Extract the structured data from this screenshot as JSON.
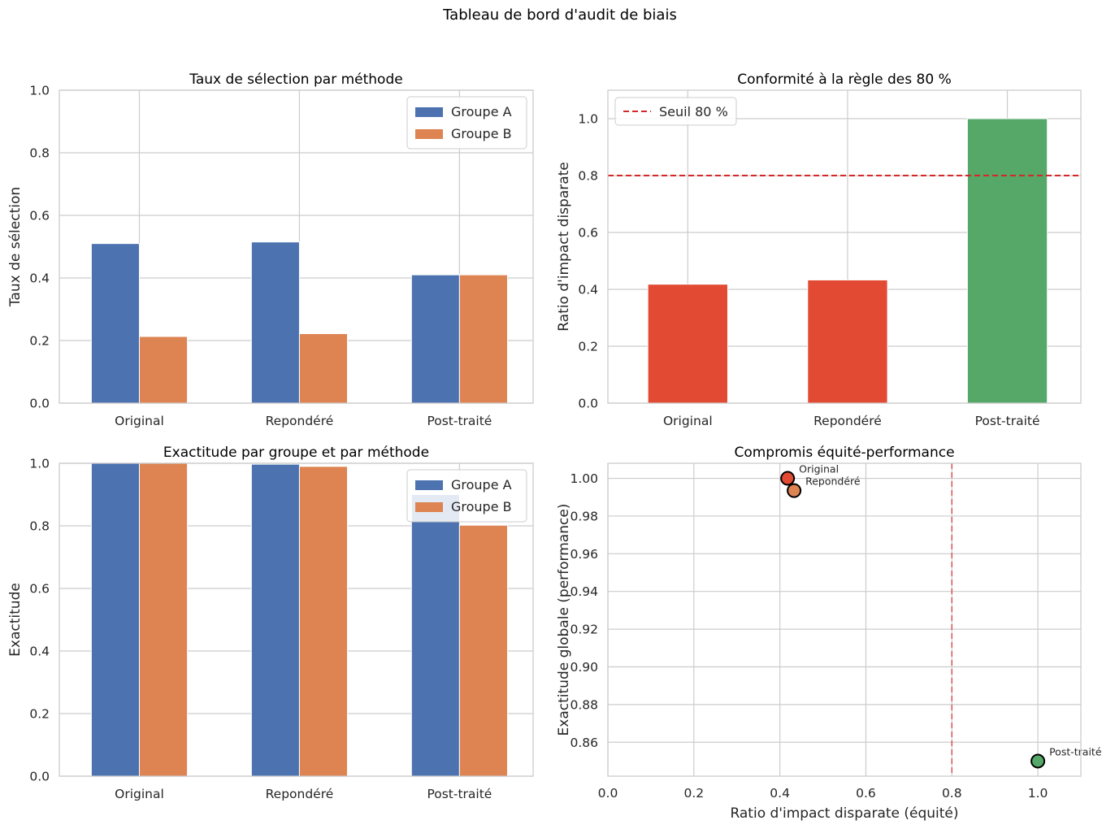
{
  "figure": {
    "title": "Tableau de bord d'audit de biais"
  },
  "colors": {
    "groupA": "#4c72b0",
    "groupB": "#dd8452",
    "red": "#e24a33",
    "orange": "#dd8452",
    "green": "#55a868",
    "threshold": "#d62728",
    "grid": "#cccccc",
    "spine": "#cccccc"
  },
  "chart_data": [
    {
      "id": "selection",
      "type": "bar",
      "title": "Taux de sélection par méthode",
      "xlabel": "",
      "ylabel": "Taux de sélection",
      "categories": [
        "Original",
        "Repondéré",
        "Post-traité"
      ],
      "series": [
        {
          "name": "Groupe A",
          "values": [
            0.51,
            0.515,
            0.41
          ]
        },
        {
          "name": "Groupe B",
          "values": [
            0.213,
            0.222,
            0.41
          ]
        }
      ],
      "ylim": [
        0,
        1
      ],
      "yticks": [
        0.0,
        0.2,
        0.4,
        0.6,
        0.8,
        1.0
      ],
      "legend": "top-right",
      "grid": true
    },
    {
      "id": "compliance",
      "type": "bar",
      "title": "Conformité à la règle des 80 %",
      "xlabel": "",
      "ylabel": "Ratio d'impact disparate",
      "categories": [
        "Original",
        "Repondéré",
        "Post-traité"
      ],
      "values": [
        0.418,
        0.433,
        1.0
      ],
      "bar_colors": [
        "#e24a33",
        "#e24a33",
        "#55a868"
      ],
      "threshold": {
        "label": "Seuil 80 %",
        "value": 0.8
      },
      "ylim": [
        0,
        1.1
      ],
      "yticks": [
        0.0,
        0.2,
        0.4,
        0.6,
        0.8,
        1.0
      ],
      "legend": "top-left",
      "grid": true
    },
    {
      "id": "accuracy",
      "type": "bar",
      "title": "Exactitude par groupe et par méthode",
      "xlabel": "",
      "ylabel": "Exactitude",
      "categories": [
        "Original",
        "Repondéré",
        "Post-traité"
      ],
      "series": [
        {
          "name": "Groupe A",
          "values": [
            1.0,
            0.997,
            0.9
          ]
        },
        {
          "name": "Groupe B",
          "values": [
            1.0,
            0.99,
            0.802
          ]
        }
      ],
      "ylim": [
        0,
        1
      ],
      "yticks": [
        0.0,
        0.2,
        0.4,
        0.6,
        0.8,
        1.0
      ],
      "legend": "top-right",
      "grid": true
    },
    {
      "id": "tradeoff",
      "type": "scatter",
      "title": "Compromis équité-performance",
      "xlabel": "Ratio d'impact disparate (équité)",
      "ylabel": "Exactitude globale (performance)",
      "points": [
        {
          "label": "Original",
          "x": 0.418,
          "y": 1.0,
          "color": "#e24a33"
        },
        {
          "label": "Repondéré",
          "x": 0.433,
          "y": 0.9935,
          "color": "#dd8452"
        },
        {
          "label": "Post-traité",
          "x": 1.0,
          "y": 0.85,
          "color": "#55a868"
        }
      ],
      "threshold_x": 0.8,
      "xlim": [
        0,
        1.1
      ],
      "ylim": [
        0.842,
        1.008
      ],
      "xticks": [
        0.0,
        0.2,
        0.4,
        0.6,
        0.8,
        1.0
      ],
      "yticks": [
        0.86,
        0.88,
        0.9,
        0.92,
        0.94,
        0.96,
        0.98,
        1.0
      ],
      "grid": true
    }
  ]
}
